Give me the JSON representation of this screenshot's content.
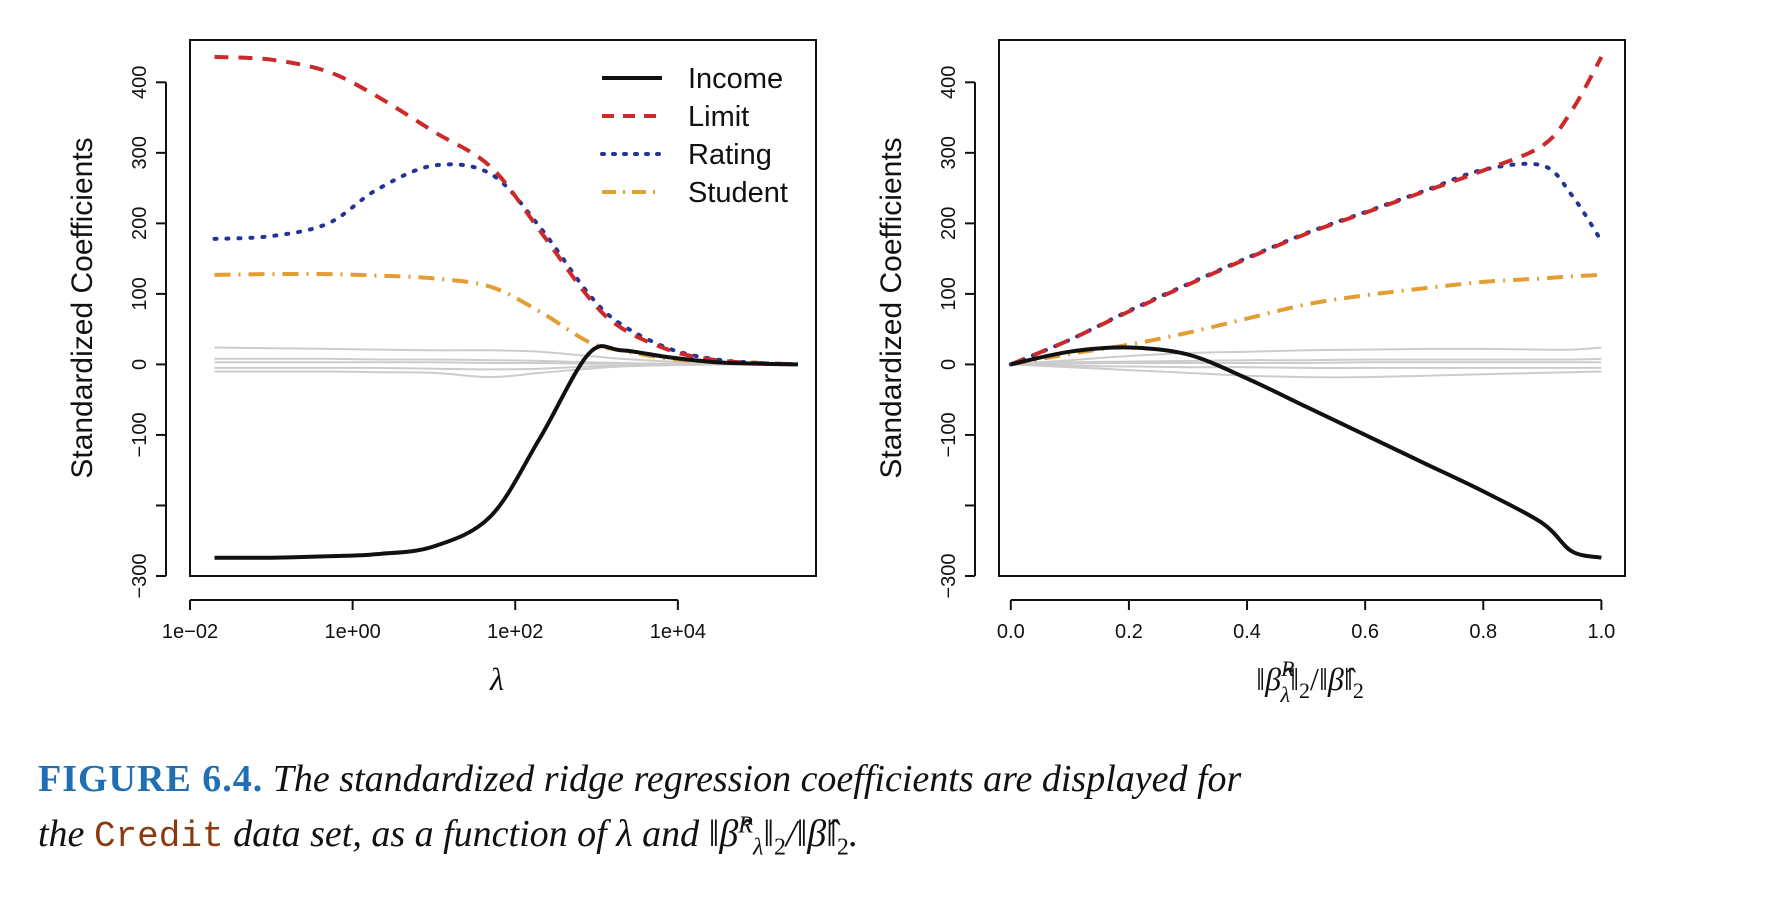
{
  "colors": {
    "income": "#111111",
    "limit": "#cc2a2a",
    "rating": "#22349a",
    "student": "#e39d32",
    "others": "#cccccc"
  },
  "chart_data": [
    {
      "type": "line",
      "xscale": "log10",
      "xlabel": "λ",
      "ylabel": "Standardized Coefficients",
      "xlim": [
        0.01,
        500000
      ],
      "ylim": [
        -300,
        460
      ],
      "x_ticks": [
        0.01,
        1,
        100,
        10000
      ],
      "x_tick_labels": [
        "1e−02",
        "1e+00",
        "1e+02",
        "1e+04"
      ],
      "y_ticks": [
        -300,
        -100,
        0,
        100,
        200,
        300,
        400
      ],
      "y_tick_labels": [
        "−300",
        "−100",
        "0",
        "100",
        "200",
        "300",
        "400"
      ],
      "legend_position": "top-right",
      "legend": [
        "Income",
        "Limit",
        "Rating",
        "Student"
      ],
      "x": [
        0.02,
        0.1,
        0.5,
        2,
        10,
        50,
        200,
        800,
        2000,
        8000,
        30000,
        100000,
        300000
      ],
      "series": [
        {
          "name": "Income",
          "style": "solid",
          "values": [
            -274,
            -274,
            -272,
            -269,
            -258,
            -215,
            -105,
            15,
            20,
            10,
            3,
            1,
            0
          ]
        },
        {
          "name": "Limit",
          "style": "dashed",
          "values": [
            436,
            432,
            415,
            380,
            330,
            280,
            190,
            95,
            52,
            20,
            6,
            2,
            0
          ]
        },
        {
          "name": "Rating",
          "style": "dotted",
          "values": [
            178,
            182,
            200,
            248,
            282,
            270,
            195,
            100,
            57,
            22,
            7,
            2,
            0
          ]
        },
        {
          "name": "Student",
          "style": "dotdash",
          "values": [
            127,
            128,
            128,
            126,
            122,
            110,
            75,
            32,
            20,
            8,
            3,
            1,
            0
          ]
        },
        {
          "name": "other-1",
          "style": "gray",
          "values": [
            24,
            23,
            22,
            21,
            20,
            20,
            18,
            12,
            8,
            4,
            1,
            0,
            0
          ]
        },
        {
          "name": "other-2",
          "style": "gray",
          "values": [
            8,
            8,
            8,
            7,
            7,
            6,
            5,
            3,
            2,
            1,
            0,
            0,
            0
          ]
        },
        {
          "name": "other-3",
          "style": "gray",
          "values": [
            3,
            3,
            3,
            3,
            3,
            2,
            2,
            1,
            1,
            0,
            0,
            0,
            0
          ]
        },
        {
          "name": "other-4",
          "style": "gray",
          "values": [
            -5,
            -5,
            -5,
            -5,
            -6,
            -7,
            -6,
            -3,
            -2,
            -1,
            0,
            0,
            0
          ]
        },
        {
          "name": "other-5",
          "style": "gray",
          "values": [
            -10,
            -10,
            -10,
            -11,
            -12,
            -18,
            -12,
            -6,
            -3,
            -1,
            0,
            0,
            0
          ]
        }
      ]
    },
    {
      "type": "line",
      "xlabel": "‖β̂λR‖2/‖β̂‖2",
      "ylabel": "Standardized Coefficients",
      "xlim": [
        -0.02,
        1.04
      ],
      "ylim": [
        -300,
        460
      ],
      "x_ticks": [
        0.0,
        0.2,
        0.4,
        0.6,
        0.8,
        1.0
      ],
      "x_tick_labels": [
        "0.0",
        "0.2",
        "0.4",
        "0.6",
        "0.8",
        "1.0"
      ],
      "y_ticks": [
        -300,
        -100,
        0,
        100,
        200,
        300,
        400
      ],
      "y_tick_labels": [
        "−300",
        "−100",
        "0",
        "100",
        "200",
        "300",
        "400"
      ],
      "x": [
        0.0,
        0.1,
        0.2,
        0.3,
        0.4,
        0.5,
        0.6,
        0.7,
        0.8,
        0.9,
        0.95,
        1.0
      ],
      "series": [
        {
          "name": "Income",
          "style": "solid",
          "values": [
            0,
            18,
            24,
            14,
            -20,
            -60,
            -100,
            -140,
            -180,
            -225,
            -265,
            -274
          ]
        },
        {
          "name": "Limit",
          "style": "dashed",
          "values": [
            0,
            35,
            75,
            113,
            150,
            185,
            215,
            245,
            275,
            310,
            360,
            436
          ]
        },
        {
          "name": "Rating",
          "style": "dotted",
          "values": [
            0,
            35,
            76,
            114,
            151,
            186,
            216,
            246,
            276,
            282,
            240,
            175
          ]
        },
        {
          "name": "Student",
          "style": "dotdash",
          "values": [
            0,
            15,
            28,
            45,
            65,
            85,
            98,
            108,
            117,
            122,
            125,
            127
          ]
        },
        {
          "name": "other-1",
          "style": "gray",
          "values": [
            0,
            6,
            12,
            16,
            18,
            20,
            21,
            22,
            22,
            21,
            21,
            24
          ]
        },
        {
          "name": "other-2",
          "style": "gray",
          "values": [
            0,
            3,
            4,
            5,
            6,
            6,
            7,
            7,
            7,
            7,
            7,
            8
          ]
        },
        {
          "name": "other-3",
          "style": "gray",
          "values": [
            0,
            1,
            2,
            2,
            2,
            2,
            3,
            3,
            3,
            3,
            3,
            3
          ]
        },
        {
          "name": "other-4",
          "style": "gray",
          "values": [
            0,
            -2,
            -3,
            -4,
            -4,
            -5,
            -5,
            -5,
            -5,
            -5,
            -5,
            -5
          ]
        },
        {
          "name": "other-5",
          "style": "gray",
          "values": [
            0,
            -4,
            -8,
            -12,
            -16,
            -18,
            -18,
            -16,
            -14,
            -12,
            -11,
            -10
          ]
        }
      ]
    }
  ],
  "caption": {
    "label": "FIGURE 6.4.",
    "text1": "The standardized ridge regression coefficients are displayed for",
    "text2_a": "the",
    "code": "Credit",
    "text2_b": "data set, as a function of λ and ‖β̂",
    "sup": "R",
    "sub_lambda": "λ",
    "norm_part": "‖",
    "sub2a": "2",
    "slash": "/‖β̂‖",
    "sub2b": "2",
    "period": "."
  },
  "math": {
    "beta_hat": "β̂",
    "R": "R",
    "lambda": "λ",
    "norm": "‖",
    "two": "2",
    "slash": "/"
  }
}
